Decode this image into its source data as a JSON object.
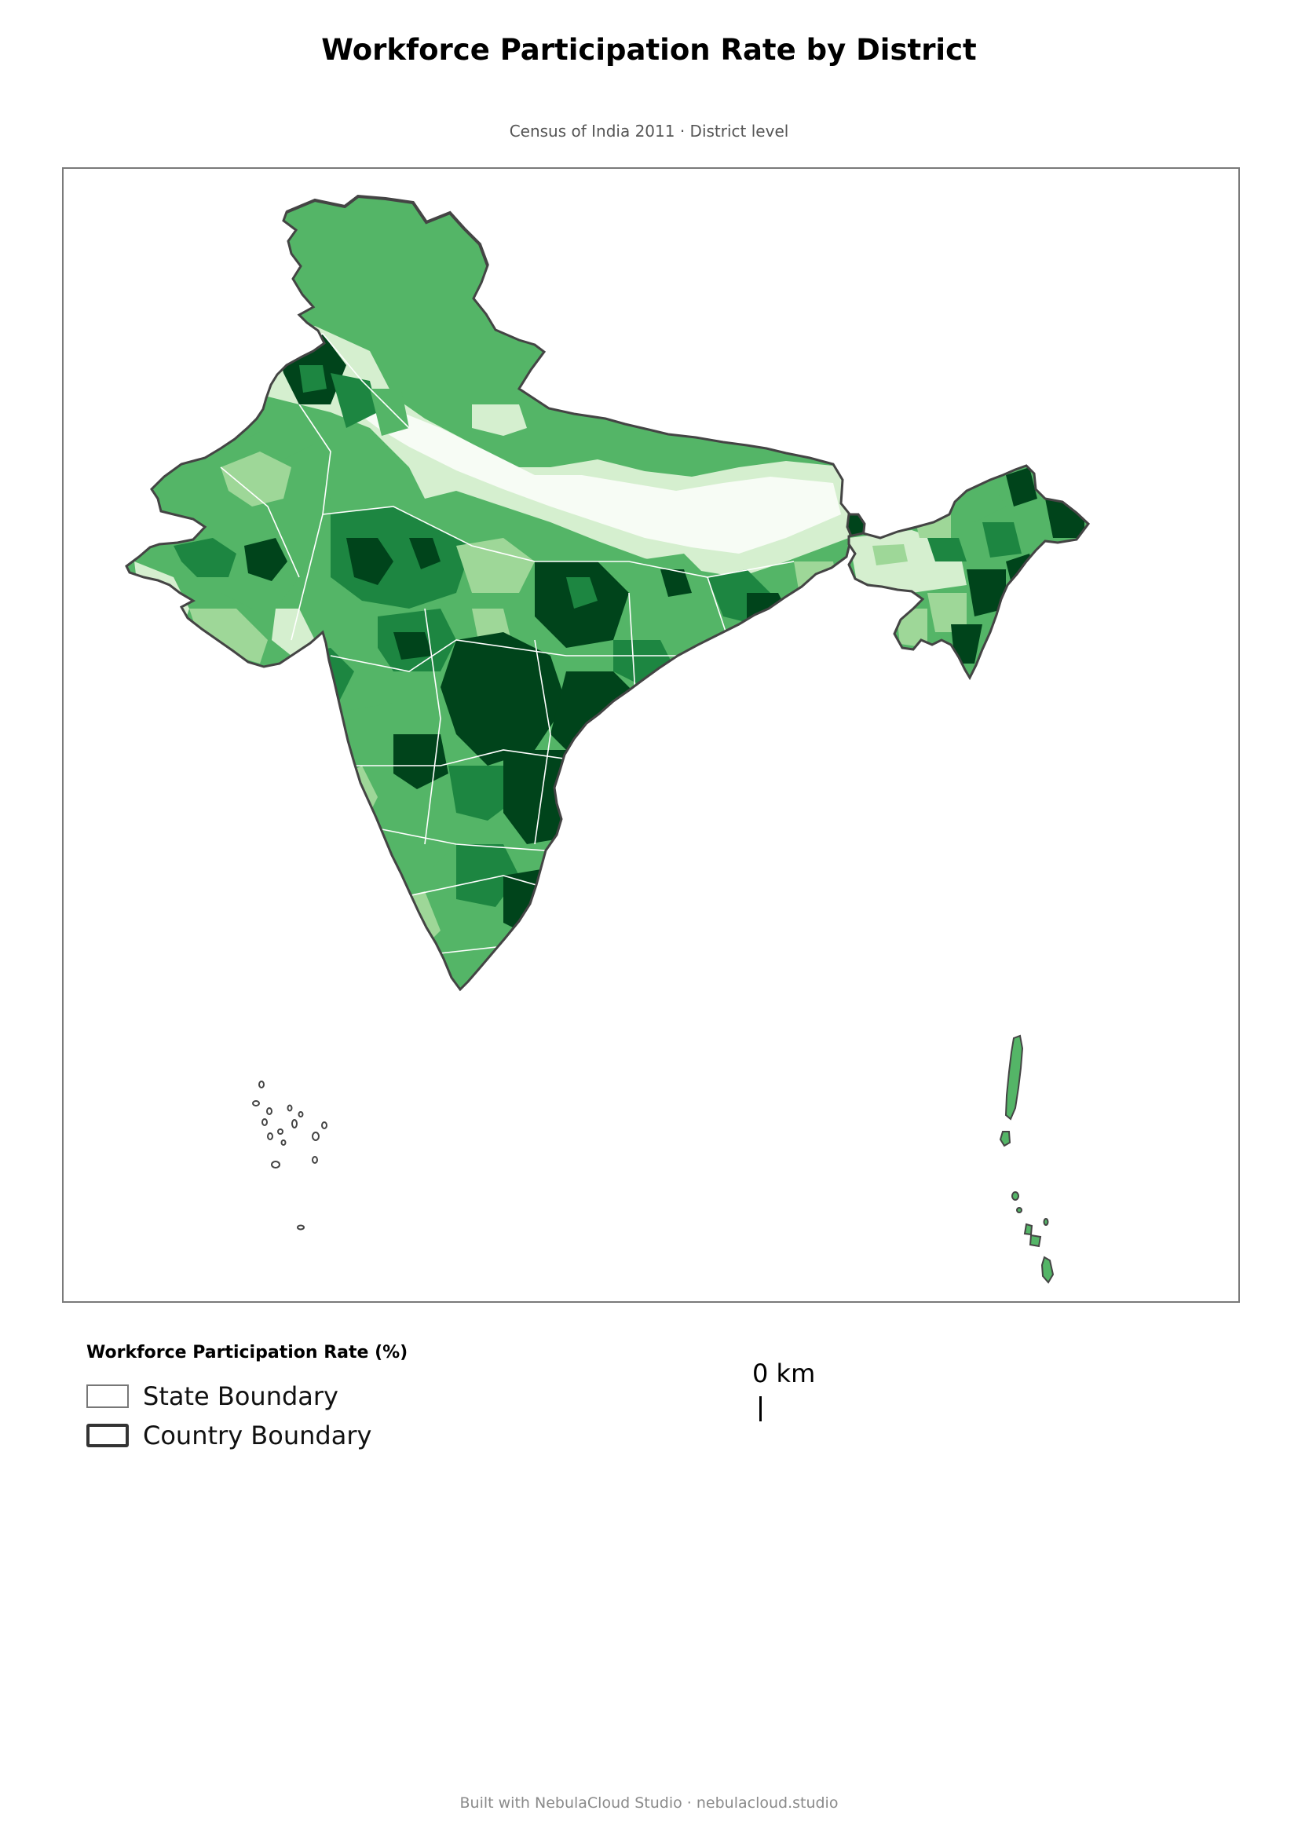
{
  "title": "Workforce Participation Rate by District",
  "subtitle": "Census of India 2011 · District level",
  "map": {
    "type": "choropleth",
    "region": "India",
    "metric": "Workforce Participation Rate (%)",
    "color_scale": [
      "#f7fcf5",
      "#d5efcf",
      "#9ed798",
      "#54b567",
      "#1d8641",
      "#00441b"
    ],
    "boundary_colors": {
      "state": "#ffffff",
      "country": "#444444"
    }
  },
  "legend": {
    "title": "Workforce Participation Rate (%)",
    "items": [
      {
        "label": "State Boundary",
        "style": "state"
      },
      {
        "label": "Country Boundary",
        "style": "country"
      }
    ]
  },
  "scale_bar": {
    "label": "0 km"
  },
  "footer": "Built with NebulaCloud Studio · nebulacloud.studio"
}
